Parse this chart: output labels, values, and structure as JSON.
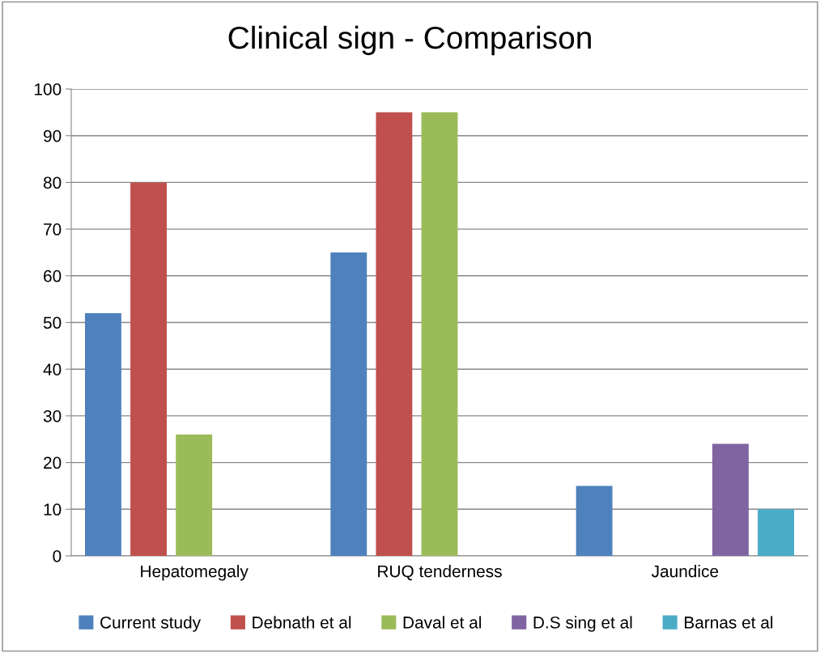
{
  "chart_data": {
    "type": "bar",
    "title": "Clinical sign - Comparison",
    "categories": [
      "Hepatomegaly",
      "RUQ tenderness",
      "Jaundice"
    ],
    "series": [
      {
        "name": "Current study",
        "color": "#4f81bd",
        "values": [
          52,
          65,
          15
        ]
      },
      {
        "name": "Debnath et al",
        "color": "#c0504d",
        "values": [
          80,
          95,
          null
        ]
      },
      {
        "name": "Daval et al",
        "color": "#9bbb59",
        "values": [
          26,
          95,
          null
        ]
      },
      {
        "name": "D.S sing et al",
        "color": "#8064a2",
        "values": [
          null,
          null,
          24
        ]
      },
      {
        "name": "Barnas et al",
        "color": "#4bacc6",
        "values": [
          null,
          null,
          10
        ]
      }
    ],
    "ylim": [
      0,
      100
    ],
    "yticks": [
      0,
      10,
      20,
      30,
      40,
      50,
      60,
      70,
      80,
      90,
      100
    ],
    "grid": "y",
    "legend": "bottom"
  }
}
